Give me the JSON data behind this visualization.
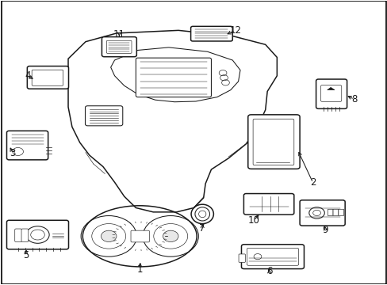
{
  "background_color": "#ffffff",
  "border_color": "#000000",
  "line_color": "#1a1a1a",
  "fig_width": 4.89,
  "fig_height": 3.6,
  "dpi": 100,
  "label_fontsize": 8.5,
  "border_lw": 1.2
}
